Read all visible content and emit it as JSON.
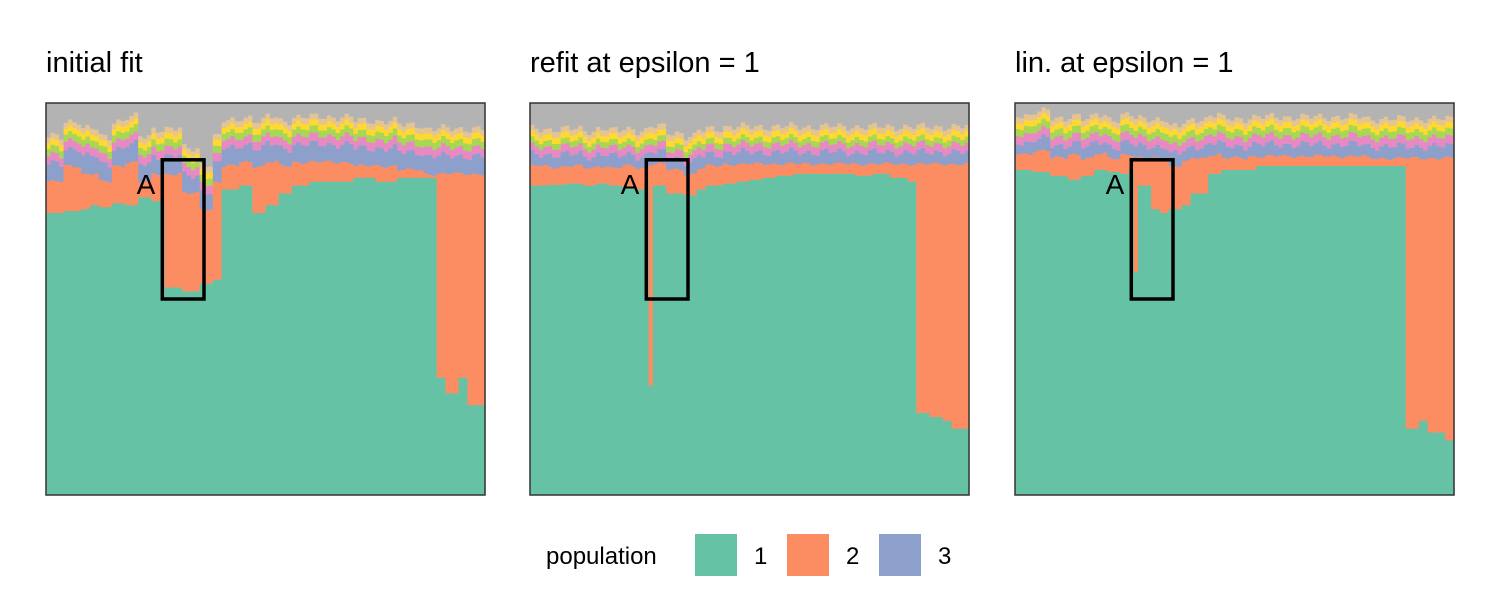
{
  "colors": {
    "pop1": "#66c2a5",
    "pop2": "#fc8d62",
    "pop3": "#8da0cb",
    "pop4": "#e78ac3",
    "pop5": "#a6d854",
    "pop6": "#ffd92f",
    "pop7": "#e5c494",
    "pop8": "#b3b3b3"
  },
  "legend": {
    "title": "population",
    "items": [
      {
        "label": "1",
        "color": "#66c2a5"
      },
      {
        "label": "2",
        "color": "#fc8d62"
      },
      {
        "label": "3",
        "color": "#8da0cb"
      }
    ]
  },
  "chart_data": [
    {
      "type": "stacked-bar",
      "title": "initial fit",
      "n_individuals": 100,
      "ylim": [
        0,
        1
      ],
      "pop1_top": [
        [
          0,
          0.72
        ],
        [
          4,
          0.725
        ],
        [
          8,
          0.73
        ],
        [
          10,
          0.74
        ],
        [
          12,
          0.735
        ],
        [
          15,
          0.745
        ],
        [
          18,
          0.74
        ],
        [
          21,
          0.76
        ],
        [
          24,
          0.75
        ],
        [
          27,
          0.53
        ],
        [
          31,
          0.52
        ],
        [
          35,
          0.54
        ],
        [
          38,
          0.55
        ],
        [
          40,
          0.78
        ],
        [
          44,
          0.79
        ],
        [
          47,
          0.72
        ],
        [
          50,
          0.74
        ],
        [
          53,
          0.77
        ],
        [
          56,
          0.79
        ],
        [
          60,
          0.8
        ],
        [
          65,
          0.8
        ],
        [
          70,
          0.81
        ],
        [
          75,
          0.8
        ],
        [
          80,
          0.81
        ],
        [
          84,
          0.81
        ],
        [
          86,
          0.81
        ],
        [
          89,
          0.3
        ],
        [
          91,
          0.26
        ],
        [
          94,
          0.3
        ],
        [
          96,
          0.23
        ],
        [
          100,
          0.23
        ]
      ],
      "pop2_top": [
        [
          0,
          0.8
        ],
        [
          4,
          0.84
        ],
        [
          8,
          0.82
        ],
        [
          12,
          0.8
        ],
        [
          15,
          0.84
        ],
        [
          18,
          0.85
        ],
        [
          21,
          0.8
        ],
        [
          24,
          0.82
        ],
        [
          27,
          0.82
        ],
        [
          31,
          0.77
        ],
        [
          35,
          0.73
        ],
        [
          38,
          0.8
        ],
        [
          40,
          0.84
        ],
        [
          44,
          0.85
        ],
        [
          47,
          0.84
        ],
        [
          50,
          0.85
        ],
        [
          53,
          0.84
        ],
        [
          56,
          0.85
        ],
        [
          60,
          0.85
        ],
        [
          65,
          0.85
        ],
        [
          70,
          0.84
        ],
        [
          75,
          0.84
        ],
        [
          80,
          0.83
        ],
        [
          84,
          0.83
        ],
        [
          86,
          0.82
        ],
        [
          89,
          0.82
        ],
        [
          91,
          0.82
        ],
        [
          94,
          0.82
        ],
        [
          96,
          0.82
        ],
        [
          100,
          0.82
        ]
      ],
      "band_thickness": {
        "pop3": 0.045,
        "pop4": 0.022,
        "pop5": 0.018,
        "pop6": 0.015,
        "pop7": 0.015
      },
      "highlight": {
        "label": "A",
        "x_start": 26.5,
        "x_end": 36,
        "y_bottom": 0.5,
        "y_top": 0.855
      }
    },
    {
      "type": "stacked-bar",
      "title": "refit at epsilon = 1",
      "n_individuals": 100,
      "ylim": [
        0,
        1
      ],
      "pop1_top": [
        [
          0,
          0.79
        ],
        [
          4,
          0.792
        ],
        [
          8,
          0.795
        ],
        [
          12,
          0.79
        ],
        [
          15,
          0.795
        ],
        [
          18,
          0.79
        ],
        [
          21,
          0.785
        ],
        [
          24,
          0.78
        ],
        [
          26,
          0.79
        ],
        [
          27,
          0.28
        ],
        [
          28,
          0.79
        ],
        [
          31,
          0.77
        ],
        [
          35,
          0.765
        ],
        [
          38,
          0.78
        ],
        [
          40,
          0.79
        ],
        [
          44,
          0.795
        ],
        [
          47,
          0.8
        ],
        [
          50,
          0.805
        ],
        [
          53,
          0.81
        ],
        [
          56,
          0.815
        ],
        [
          60,
          0.82
        ],
        [
          65,
          0.82
        ],
        [
          70,
          0.82
        ],
        [
          74,
          0.815
        ],
        [
          78,
          0.82
        ],
        [
          82,
          0.81
        ],
        [
          86,
          0.8
        ],
        [
          88,
          0.21
        ],
        [
          91,
          0.2
        ],
        [
          94,
          0.19
        ],
        [
          96,
          0.17
        ],
        [
          100,
          0.17
        ]
      ],
      "pop2_top": [
        [
          0,
          0.84
        ],
        [
          4,
          0.838
        ],
        [
          8,
          0.84
        ],
        [
          12,
          0.835
        ],
        [
          15,
          0.84
        ],
        [
          18,
          0.835
        ],
        [
          21,
          0.84
        ],
        [
          24,
          0.835
        ],
        [
          27,
          0.845
        ],
        [
          31,
          0.83
        ],
        [
          35,
          0.82
        ],
        [
          38,
          0.835
        ],
        [
          40,
          0.84
        ],
        [
          44,
          0.845
        ],
        [
          47,
          0.845
        ],
        [
          50,
          0.845
        ],
        [
          53,
          0.845
        ],
        [
          56,
          0.846
        ],
        [
          60,
          0.845
        ],
        [
          65,
          0.846
        ],
        [
          70,
          0.845
        ],
        [
          75,
          0.845
        ],
        [
          80,
          0.845
        ],
        [
          84,
          0.845
        ],
        [
          86,
          0.845
        ],
        [
          89,
          0.845
        ],
        [
          91,
          0.845
        ],
        [
          94,
          0.845
        ],
        [
          96,
          0.845
        ],
        [
          100,
          0.845
        ]
      ],
      "band_thickness": {
        "pop3": 0.03,
        "pop4": 0.02,
        "pop5": 0.015,
        "pop6": 0.015,
        "pop7": 0.015
      },
      "highlight": {
        "label": "A",
        "x_start": 26.5,
        "x_end": 36,
        "y_bottom": 0.5,
        "y_top": 0.855
      }
    },
    {
      "type": "stacked-bar",
      "title": "lin. at epsilon = 1",
      "n_individuals": 100,
      "ylim": [
        0,
        1
      ],
      "pop1_top": [
        [
          0,
          0.83
        ],
        [
          4,
          0.825
        ],
        [
          8,
          0.815
        ],
        [
          12,
          0.805
        ],
        [
          15,
          0.815
        ],
        [
          18,
          0.83
        ],
        [
          21,
          0.825
        ],
        [
          24,
          0.82
        ],
        [
          26,
          0.83
        ],
        [
          27,
          0.57
        ],
        [
          28,
          0.79
        ],
        [
          31,
          0.73
        ],
        [
          33,
          0.72
        ],
        [
          35,
          0.73
        ],
        [
          38,
          0.74
        ],
        [
          40,
          0.77
        ],
        [
          44,
          0.82
        ],
        [
          47,
          0.83
        ],
        [
          50,
          0.83
        ],
        [
          55,
          0.84
        ],
        [
          60,
          0.84
        ],
        [
          65,
          0.84
        ],
        [
          70,
          0.84
        ],
        [
          75,
          0.84
        ],
        [
          80,
          0.84
        ],
        [
          84,
          0.84
        ],
        [
          86,
          0.84
        ],
        [
          89,
          0.17
        ],
        [
          92,
          0.19
        ],
        [
          94,
          0.16
        ],
        [
          96,
          0.16
        ],
        [
          98,
          0.14
        ],
        [
          100,
          0.14
        ]
      ],
      "pop2_top": [
        [
          0,
          0.87
        ],
        [
          4,
          0.88
        ],
        [
          8,
          0.86
        ],
        [
          12,
          0.87
        ],
        [
          15,
          0.86
        ],
        [
          18,
          0.87
        ],
        [
          21,
          0.86
        ],
        [
          24,
          0.87
        ],
        [
          27,
          0.86
        ],
        [
          31,
          0.86
        ],
        [
          35,
          0.84
        ],
        [
          38,
          0.85
        ],
        [
          40,
          0.86
        ],
        [
          44,
          0.87
        ],
        [
          47,
          0.86
        ],
        [
          50,
          0.86
        ],
        [
          53,
          0.865
        ],
        [
          56,
          0.865
        ],
        [
          60,
          0.865
        ],
        [
          65,
          0.865
        ],
        [
          70,
          0.865
        ],
        [
          75,
          0.865
        ],
        [
          80,
          0.86
        ],
        [
          84,
          0.86
        ],
        [
          86,
          0.86
        ],
        [
          89,
          0.86
        ],
        [
          91,
          0.86
        ],
        [
          94,
          0.86
        ],
        [
          96,
          0.86
        ],
        [
          100,
          0.86
        ]
      ],
      "band_thickness": {
        "pop3": 0.03,
        "pop4": 0.022,
        "pop5": 0.018,
        "pop6": 0.015,
        "pop7": 0.015
      },
      "highlight": {
        "label": "A",
        "x_start": 26.5,
        "x_end": 36,
        "y_bottom": 0.5,
        "y_top": 0.855
      }
    }
  ]
}
